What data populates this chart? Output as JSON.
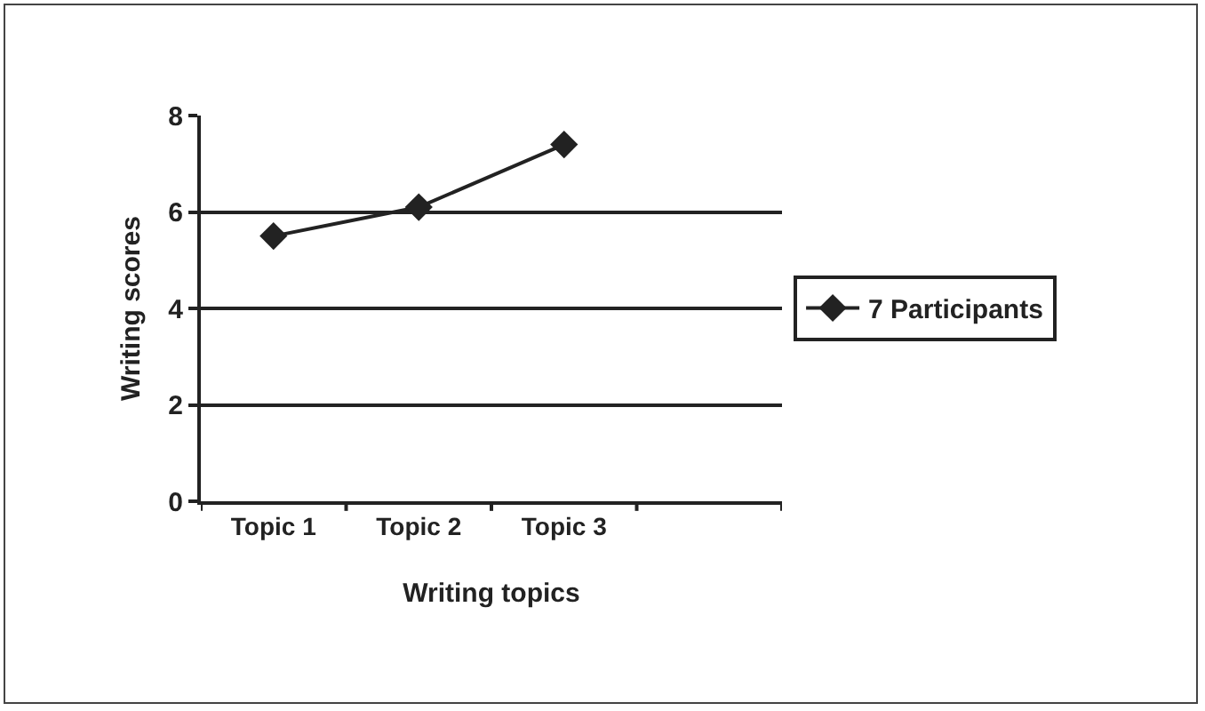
{
  "chart_data": {
    "type": "line",
    "xlabel": "Writing topics",
    "ylabel": "Writing scores",
    "categories": [
      "Topic 1",
      "Topic 2",
      "Topic 3",
      null
    ],
    "series": [
      {
        "name": "7 Participants",
        "color": "#222222",
        "values": [
          5.5,
          6.1,
          7.4,
          null
        ]
      }
    ],
    "ylim": [
      0,
      8
    ],
    "yticks": [
      0,
      2,
      4,
      6,
      8
    ],
    "grid": "y",
    "legend": "right",
    "marker": "diamond",
    "line_style": "solid"
  }
}
